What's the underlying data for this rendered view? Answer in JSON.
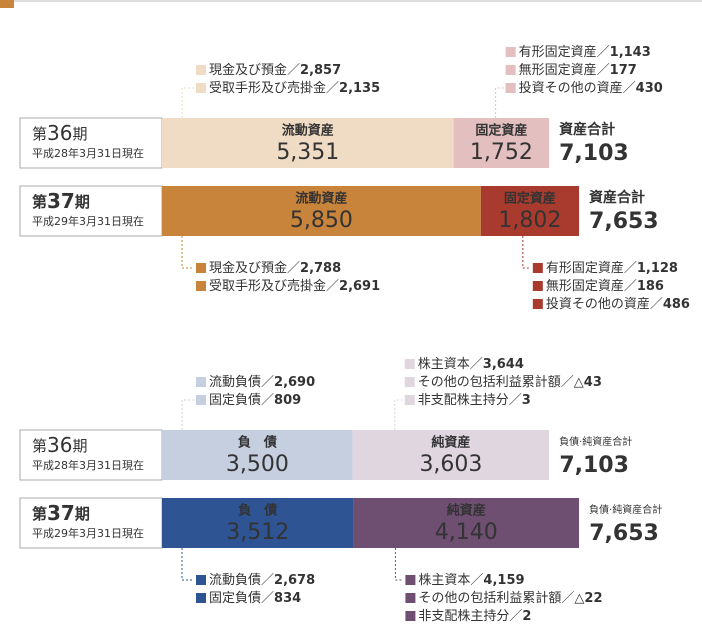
{
  "separator": "／",
  "sections": [
    {
      "rows": [
        {
          "prefix": "第",
          "number": "36",
          "suffix": "期",
          "date": "平成28年3月31日現在",
          "total_label": "資産合計",
          "total": 7103,
          "total_text": "7,103",
          "segments": [
            {
              "name": "流動資産",
              "value": 5351,
              "value_label": "5,351",
              "color": "#f0dcc4",
              "text_color": "#333",
              "items": [
                {
                  "name": "現金及び預金",
                  "value": 2857,
                  "label": "2,857"
                },
                {
                  "name": "受取手形及び売掛金",
                  "value": 2135,
                  "label": "2,135"
                }
              ]
            },
            {
              "name": "固定資産",
              "value": 1752,
              "value_label": "1,752",
              "color": "#e3bfbf",
              "text_color": "#333",
              "items": [
                {
                  "name": "有形固定資産",
                  "value": 1143,
                  "label": "1,143"
                },
                {
                  "name": "無形固定資産",
                  "value": 177,
                  "label": "177"
                },
                {
                  "name": "投資その他の資産",
                  "value": 430,
                  "label": "430"
                }
              ]
            }
          ]
        },
        {
          "prefix": "第",
          "number": "37",
          "suffix": "期",
          "date": "平成29年3月31日現在",
          "total_label": "資産合計",
          "total": 7653,
          "total_text": "7,653",
          "segments": [
            {
              "name": "流動資産",
              "value": 5850,
              "value_label": "5,850",
              "color": "#c8843a",
              "text_color": "#fff",
              "items": [
                {
                  "name": "現金及び預金",
                  "value": 2788,
                  "label": "2,788"
                },
                {
                  "name": "受取手形及び売掛金",
                  "value": 2691,
                  "label": "2,691"
                }
              ]
            },
            {
              "name": "固定資産",
              "value": 1802,
              "value_label": "1,802",
              "color": "#a83a2e",
              "text_color": "#fff",
              "items": [
                {
                  "name": "有形固定資産",
                  "value": 1128,
                  "label": "1,128"
                },
                {
                  "name": "無形固定資産",
                  "value": 186,
                  "label": "186"
                },
                {
                  "name": "投資その他の資産",
                  "value": 486,
                  "label": "486"
                }
              ]
            }
          ]
        }
      ]
    },
    {
      "rows": [
        {
          "prefix": "第",
          "number": "36",
          "suffix": "期",
          "date": "平成28年3月31日現在",
          "total_label": "負債·純資産合計",
          "total": 7103,
          "total_text": "7,103",
          "segments": [
            {
              "name": "負　債",
              "value": 3500,
              "value_label": "3,500",
              "color": "#c6cfe0",
              "text_color": "#333",
              "items": [
                {
                  "name": "流動負債",
                  "value": 2690,
                  "label": "2,690"
                },
                {
                  "name": "固定負債",
                  "value": 809,
                  "label": "809"
                }
              ]
            },
            {
              "name": "純資産",
              "value": 3603,
              "value_label": "3,603",
              "color": "#e0d6e0",
              "text_color": "#333",
              "items": [
                {
                  "name": "株主資本",
                  "value": 3644,
                  "label": "3,644"
                },
                {
                  "name": "その他の包括利益累計額",
                  "value": -43,
                  "label": "△43"
                },
                {
                  "name": "非支配株主持分",
                  "value": 3,
                  "label": "3"
                }
              ]
            }
          ]
        },
        {
          "prefix": "第",
          "number": "37",
          "suffix": "期",
          "date": "平成29年3月31日現在",
          "total_label": "負債·純資産合計",
          "total": 7653,
          "total_text": "7,653",
          "segments": [
            {
              "name": "負　債",
              "value": 3512,
              "value_label": "3,512",
              "color": "#2e5494",
              "text_color": "#fff",
              "items": [
                {
                  "name": "流動負債",
                  "value": 2678,
                  "label": "2,678"
                },
                {
                  "name": "固定負債",
                  "value": 834,
                  "label": "834"
                }
              ]
            },
            {
              "name": "純資産",
              "value": 4140,
              "value_label": "4,140",
              "color": "#6e4f72",
              "text_color": "#fff",
              "items": [
                {
                  "name": "株主資本",
                  "value": 4159,
                  "label": "4,159"
                },
                {
                  "name": "その他の包括利益累計額",
                  "value": -22,
                  "label": "△22"
                },
                {
                  "name": "非支配株主持分",
                  "value": 2,
                  "label": "2"
                }
              ]
            }
          ]
        }
      ]
    }
  ]
}
